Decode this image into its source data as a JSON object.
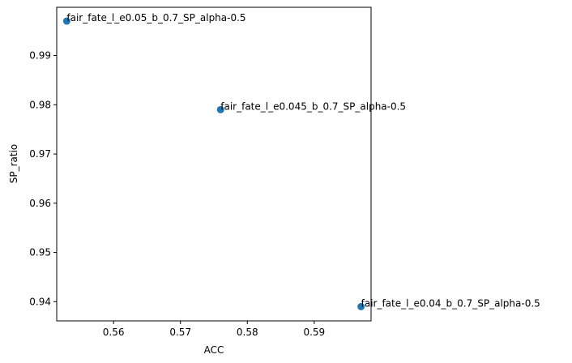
{
  "chart_data": {
    "type": "scatter",
    "xlabel": "ACC",
    "ylabel": "SP_ratio",
    "xlim": [
      0.5515,
      0.5985
    ],
    "ylim": [
      0.9361,
      0.9998
    ],
    "xticks": [
      "0.56",
      "0.57",
      "0.58",
      "0.59"
    ],
    "yticks": [
      "0.94",
      "0.95",
      "0.96",
      "0.97",
      "0.98",
      "0.99"
    ],
    "grid": false,
    "marker_color": "#1f77b4",
    "points": [
      {
        "x": 0.553,
        "y": 0.997,
        "label": "fair_fate_l_e0.05_b_0.7_SP_alpha-0.5"
      },
      {
        "x": 0.576,
        "y": 0.979,
        "label": "fair_fate_l_e0.045_b_0.7_SP_alpha-0.5"
      },
      {
        "x": 0.597,
        "y": 0.939,
        "label": "fair_fate_l_e0.04_b_0.7_SP_alpha-0.5"
      }
    ]
  }
}
